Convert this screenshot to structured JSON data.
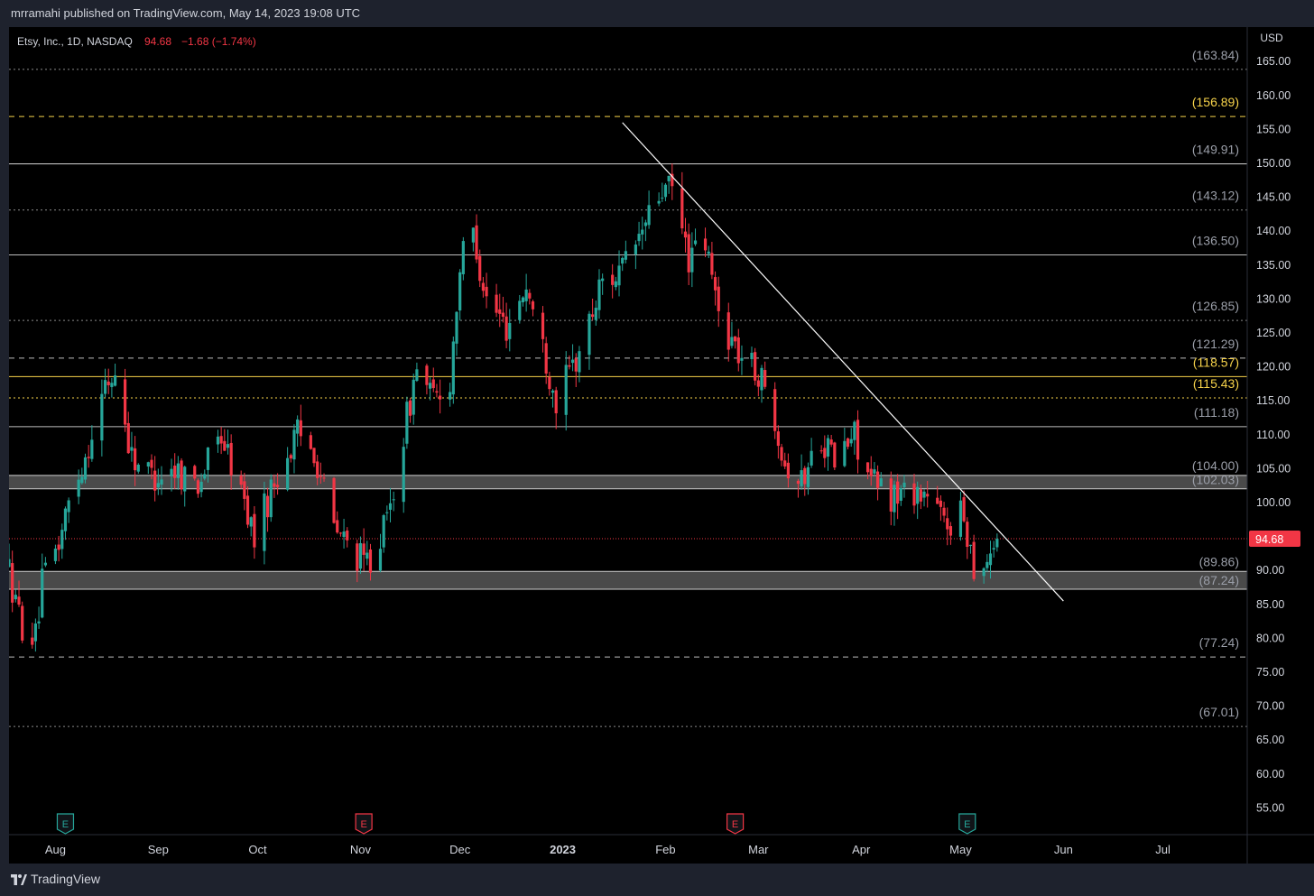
{
  "header": {
    "published_by": "mrramahi published on TradingView.com, May 14, 2023 19:08 UTC"
  },
  "legend": {
    "symbol": "Etsy, Inc., 1D, NASDAQ",
    "last": "94.68",
    "change": "−1.68 (−1.74%)"
  },
  "footer": {
    "brand": "TradingView"
  },
  "colors": {
    "up": "#26a69a",
    "down": "#f23645",
    "yellow": "#f7d34a",
    "white_line": "#d6d6d6",
    "background": "#000000"
  },
  "chart_data": {
    "type": "candlestick",
    "currency_label": "USD",
    "last_price": 94.68,
    "last_price_label": "94.68",
    "y_range": [
      50,
      170
    ],
    "y_ticks": [
      165,
      160,
      155,
      150,
      145,
      140,
      135,
      130,
      125,
      120,
      115,
      110,
      105,
      100,
      95,
      90,
      85,
      80,
      75,
      70,
      65,
      60,
      55
    ],
    "y_tick_labels": [
      "165.00",
      "160.00",
      "155.00",
      "150.00",
      "145.00",
      "140.00",
      "135.00",
      "130.00",
      "125.00",
      "120.00",
      "115.00",
      "110.00",
      "105.00",
      "100.00",
      "",
      "90.00",
      "85.00",
      "80.00",
      "75.00",
      "70.00",
      "65.00",
      "60.00",
      "55.00"
    ],
    "x_range": [
      "2022-07-18",
      "2023-07-18"
    ],
    "x_ticks": [
      {
        "date": "2022-08-01",
        "label": "Aug",
        "bold": false
      },
      {
        "date": "2022-09-01",
        "label": "Sep",
        "bold": false
      },
      {
        "date": "2022-10-01",
        "label": "Oct",
        "bold": false
      },
      {
        "date": "2022-11-01",
        "label": "Nov",
        "bold": false
      },
      {
        "date": "2022-12-01",
        "label": "Dec",
        "bold": false
      },
      {
        "date": "2023-01-01",
        "label": "2023",
        "bold": true
      },
      {
        "date": "2023-02-01",
        "label": "Feb",
        "bold": false
      },
      {
        "date": "2023-03-01",
        "label": "Mar",
        "bold": false
      },
      {
        "date": "2023-04-01",
        "label": "Apr",
        "bold": false
      },
      {
        "date": "2023-05-01",
        "label": "May",
        "bold": false
      },
      {
        "date": "2023-06-01",
        "label": "Jun",
        "bold": false
      },
      {
        "date": "2023-07-01",
        "label": "Jul",
        "bold": false
      }
    ],
    "levels": [
      {
        "value": 163.84,
        "label": "(163.84)",
        "style": "dotted",
        "color": "#8a8a8a"
      },
      {
        "value": 156.89,
        "label": "(156.89)",
        "style": "dashed",
        "color": "#f7d34a"
      },
      {
        "value": 149.91,
        "label": "(149.91)",
        "style": "solid",
        "color": "#d6d6d6"
      },
      {
        "value": 143.12,
        "label": "(143.12)",
        "style": "dotted",
        "color": "#8a8a8a"
      },
      {
        "value": 136.5,
        "label": "(136.50)",
        "style": "solid",
        "color": "#bdbdbd"
      },
      {
        "value": 126.85,
        "label": "(126.85)",
        "style": "dotted",
        "color": "#8a8a8a"
      },
      {
        "value": 121.29,
        "label": "(121.29)",
        "style": "dashed",
        "color": "#bdbdbd"
      },
      {
        "value": 118.57,
        "label": "(118.57)",
        "style": "solid",
        "color": "#f7d34a"
      },
      {
        "value": 115.43,
        "label": "(115.43)",
        "style": "dotted",
        "color": "#f7d34a"
      },
      {
        "value": 111.18,
        "label": "(111.18)",
        "style": "solid",
        "color": "#bdbdbd"
      },
      {
        "value": 77.24,
        "label": "(77.24)",
        "style": "dashed",
        "color": "#bdbdbd"
      },
      {
        "value": 67.01,
        "label": "(67.01)",
        "style": "dotted",
        "color": "#8a8a8a"
      }
    ],
    "zones": [
      {
        "top": 104.0,
        "bottom": 102.03,
        "top_label": "(104.00)",
        "bottom_label": "(102.03)"
      },
      {
        "top": 89.86,
        "bottom": 87.24,
        "top_label": "(89.86)",
        "bottom_label": "(87.24)"
      }
    ],
    "trendline": {
      "start": {
        "date": "2023-01-19",
        "price": 156.0
      },
      "end": {
        "date": "2023-06-01",
        "price": 85.5
      }
    },
    "earnings": [
      {
        "date": "2022-08-04",
        "color": "#26a69a",
        "label": "E"
      },
      {
        "date": "2022-11-02",
        "color": "#f23645",
        "label": "E"
      },
      {
        "date": "2023-02-22",
        "color": "#f23645",
        "label": "E"
      },
      {
        "date": "2023-05-03",
        "color": "#26a69a",
        "label": "E"
      }
    ],
    "waypoints": [
      [
        "2022-07-18",
        90
      ],
      [
        "2022-07-20",
        85
      ],
      [
        "2022-07-22",
        82
      ],
      [
        "2022-07-26",
        80
      ],
      [
        "2022-07-28",
        88
      ],
      [
        "2022-08-02",
        94
      ],
      [
        "2022-08-05",
        100
      ],
      [
        "2022-08-10",
        107
      ],
      [
        "2022-08-16",
        117
      ],
      [
        "2022-08-19",
        119
      ],
      [
        "2022-08-24",
        107
      ],
      [
        "2022-08-30",
        104
      ],
      [
        "2022-09-06",
        105
      ],
      [
        "2022-09-13",
        103
      ],
      [
        "2022-09-20",
        110
      ],
      [
        "2022-09-27",
        100
      ],
      [
        "2022-09-30",
        95
      ],
      [
        "2022-10-06",
        103
      ],
      [
        "2022-10-13",
        110
      ],
      [
        "2022-10-18",
        108
      ],
      [
        "2022-10-24",
        96
      ],
      [
        "2022-10-28",
        94
      ],
      [
        "2022-11-02",
        91
      ],
      [
        "2022-11-04",
        92
      ],
      [
        "2022-11-09",
        97
      ],
      [
        "2022-11-14",
        110
      ],
      [
        "2022-11-18",
        120
      ],
      [
        "2022-11-23",
        115
      ],
      [
        "2022-11-28",
        118
      ],
      [
        "2022-12-01",
        135
      ],
      [
        "2022-12-05",
        140
      ],
      [
        "2022-12-09",
        130
      ],
      [
        "2022-12-15",
        126
      ],
      [
        "2022-12-21",
        132
      ],
      [
        "2022-12-27",
        121
      ],
      [
        "2022-12-30",
        115
      ],
      [
        "2023-01-05",
        121
      ],
      [
        "2023-01-10",
        128
      ],
      [
        "2023-01-13",
        133
      ],
      [
        "2023-01-19",
        134
      ],
      [
        "2023-01-25",
        140
      ],
      [
        "2023-01-31",
        146
      ],
      [
        "2023-02-03",
        146
      ],
      [
        "2023-02-08",
        136
      ],
      [
        "2023-02-13",
        138
      ],
      [
        "2023-02-17",
        128
      ],
      [
        "2023-02-23",
        122
      ],
      [
        "2023-03-01",
        119
      ],
      [
        "2023-03-06",
        113
      ],
      [
        "2023-03-09",
        106
      ],
      [
        "2023-03-14",
        103
      ],
      [
        "2023-03-20",
        110
      ],
      [
        "2023-03-24",
        106
      ],
      [
        "2023-03-30",
        110
      ],
      [
        "2023-04-04",
        103
      ],
      [
        "2023-04-10",
        101
      ],
      [
        "2023-04-17",
        102
      ],
      [
        "2023-04-21",
        101
      ],
      [
        "2023-04-26",
        97
      ],
      [
        "2023-05-02",
        98
      ],
      [
        "2023-05-05",
        91
      ],
      [
        "2023-05-08",
        91
      ],
      [
        "2023-05-12",
        95
      ]
    ]
  }
}
